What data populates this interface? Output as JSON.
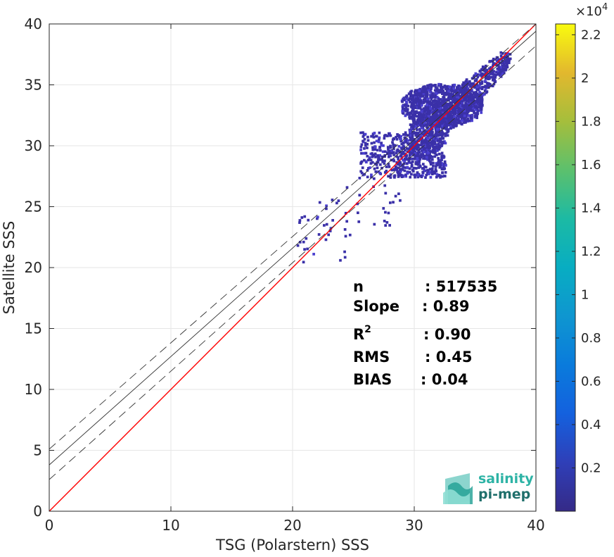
{
  "chart_data": {
    "type": "heatmap",
    "title": "",
    "xlabel": "TSG (Polarstern) SSS",
    "ylabel": "Satellite SSS",
    "xlim": [
      0,
      40
    ],
    "ylim": [
      0,
      40
    ],
    "xticks": [
      0,
      10,
      20,
      30,
      40
    ],
    "yticks": [
      0,
      5,
      10,
      15,
      20,
      25,
      30,
      35,
      40
    ],
    "grid": true,
    "lines": [
      {
        "kind": "identity",
        "color": "#ff0000",
        "style": "solid",
        "x": [
          0,
          40
        ],
        "y": [
          0,
          40
        ]
      },
      {
        "kind": "regression",
        "color": "#333333",
        "style": "solid",
        "x": [
          0,
          40
        ],
        "y": [
          3.8,
          39.4
        ]
      },
      {
        "kind": "regression-upper",
        "color": "#333333",
        "style": "dashed",
        "x": [
          0,
          40
        ],
        "y": [
          5.1,
          40.0
        ]
      },
      {
        "kind": "regression-lower",
        "color": "#333333",
        "style": "dashed",
        "x": [
          0,
          40
        ],
        "y": [
          2.6,
          38.2
        ]
      }
    ],
    "density_cloud": {
      "description_units": "salinity",
      "main_band": {
        "x_range": [
          29.5,
          37.8
        ],
        "y_range": [
          29.0,
          37.8
        ]
      },
      "upper_cluster": {
        "x_range": [
          28.8,
          35.5
        ],
        "y_range": [
          31.5,
          35.5
        ]
      },
      "left_block": {
        "x_range": [
          25.5,
          32.5
        ],
        "y_range": [
          27.5,
          31.2
        ]
      },
      "scattered_tail": {
        "x_range": [
          20.3,
          29.0
        ],
        "y_range": [
          20.5,
          27.5
        ]
      }
    },
    "colorbar": {
      "min": 0,
      "max": 22500,
      "exponent_label": "×10",
      "exponent": "4",
      "ticks": [
        "0.2",
        "0.4",
        "0.6",
        "0.8",
        "1",
        "1.2",
        "1.4",
        "1.6",
        "1.8",
        "2",
        "2.2"
      ],
      "tick_values": [
        0.2,
        0.4,
        0.6,
        0.8,
        1.0,
        1.2,
        1.4,
        1.6,
        1.8,
        2.0,
        2.2
      ],
      "colormap": "parula"
    },
    "stats": [
      {
        "label": "n",
        "value": ": 517535"
      },
      {
        "label": "Slope",
        "value": ": 0.89"
      },
      {
        "label": "R",
        "sup": "2",
        "value": ": 0.90"
      },
      {
        "label": "RMS",
        "value": ": 0.45"
      },
      {
        "label": "BIAS",
        "value": ": 0.04"
      }
    ]
  },
  "logo": {
    "line1": "salinity",
    "line2": "pi-mep",
    "color1": "#2db3a5",
    "color2": "#1f6f6b"
  }
}
